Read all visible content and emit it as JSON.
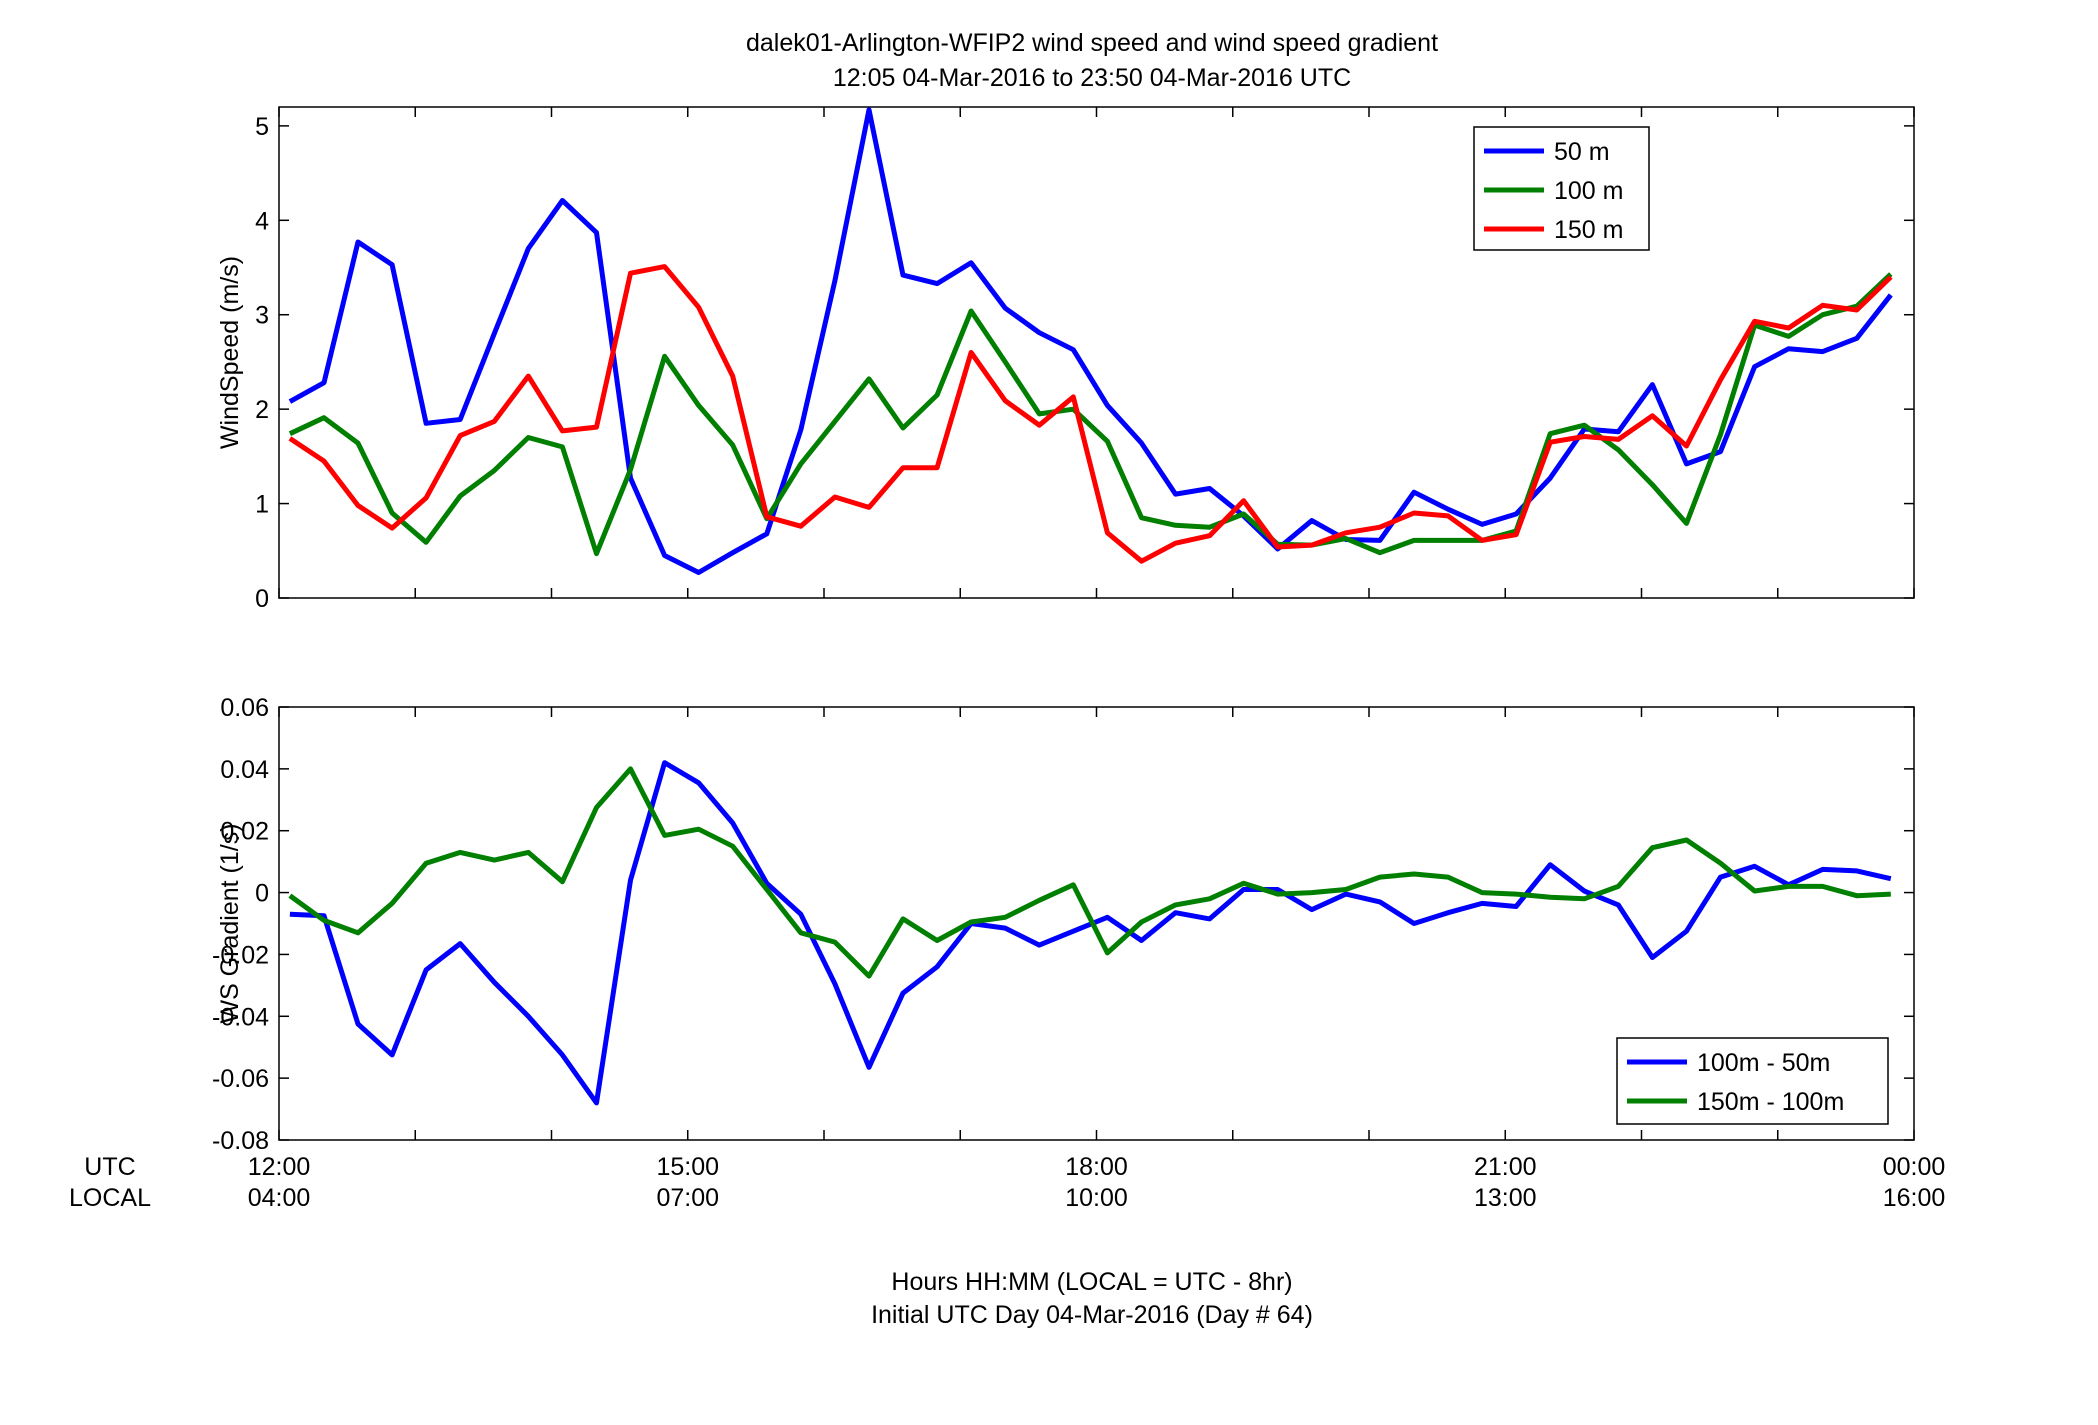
{
  "figure": {
    "title_line1": "dalek01-Arlington-WFIP2  wind speed and wind speed gradient",
    "title_line2": "12:05 04-Mar-2016 to 23:50 04-Mar-2016  UTC",
    "row_label_utc": "UTC",
    "row_label_local": "LOCAL",
    "xlabel_line1": "Hours HH:MM  (LOCAL = UTC - 8hr)",
    "xlabel_line2": "Initial UTC Day 04-Mar-2016 (Day # 64)",
    "utc_ticks": [
      "12:00",
      "15:00",
      "18:00",
      "21:00",
      "00:00"
    ],
    "local_ticks": [
      "04:00",
      "07:00",
      "10:00",
      "13:00",
      "16:00"
    ]
  },
  "chart_data": [
    {
      "type": "line",
      "ylabel": "WindSpeed (m/s)",
      "xlim": [
        12.0,
        24.0
      ],
      "ylim": [
        0,
        5.2
      ],
      "yticks": [
        0,
        1,
        2,
        3,
        4,
        5
      ],
      "ytick_labels": [
        "0",
        "1",
        "2",
        "3",
        "4",
        "5"
      ],
      "legend_position": "top-right",
      "x": [
        12.08,
        12.33,
        12.58,
        12.83,
        13.08,
        13.33,
        13.58,
        13.83,
        14.08,
        14.33,
        14.58,
        14.83,
        15.08,
        15.33,
        15.58,
        15.83,
        16.08,
        16.33,
        16.58,
        16.83,
        17.08,
        17.33,
        17.58,
        17.83,
        18.08,
        18.33,
        18.58,
        18.83,
        19.08,
        19.33,
        19.58,
        19.83,
        20.08,
        20.33,
        20.58,
        20.83,
        21.08,
        21.33,
        21.58,
        21.83,
        22.08,
        22.33,
        22.58,
        22.83,
        23.08,
        23.33,
        23.58,
        23.83
      ],
      "series": [
        {
          "name": "50 m",
          "color": "#0000ff",
          "values": [
            2.08,
            2.28,
            3.77,
            3.53,
            1.85,
            1.89,
            2.8,
            3.7,
            4.21,
            3.87,
            1.27,
            0.45,
            0.27,
            0.48,
            0.68,
            1.78,
            3.36,
            5.17,
            3.42,
            3.33,
            3.55,
            3.07,
            2.81,
            2.63,
            2.04,
            1.64,
            1.1,
            1.16,
            0.87,
            0.52,
            0.82,
            0.62,
            0.61,
            1.12,
            0.94,
            0.78,
            0.89,
            1.27,
            1.79,
            1.76,
            2.26,
            1.42,
            1.55,
            2.45,
            2.64,
            2.61,
            2.75,
            3.21
          ]
        },
        {
          "name": "100 m",
          "color": "#007f00",
          "values": [
            1.74,
            1.91,
            1.64,
            0.9,
            0.59,
            1.08,
            1.35,
            1.7,
            1.6,
            0.47,
            1.36,
            2.56,
            2.04,
            1.62,
            0.84,
            1.42,
            1.87,
            2.32,
            1.8,
            2.15,
            3.04,
            2.5,
            1.95,
            2.0,
            1.66,
            0.85,
            0.77,
            0.75,
            0.89,
            0.57,
            0.56,
            0.63,
            0.48,
            0.61,
            0.61,
            0.61,
            0.71,
            1.74,
            1.83,
            1.57,
            1.2,
            0.79,
            1.73,
            2.89,
            2.77,
            3.0,
            3.09,
            3.43
          ]
        },
        {
          "name": "150 m",
          "color": "#ff0000",
          "values": [
            1.69,
            1.45,
            0.98,
            0.74,
            1.06,
            1.72,
            1.87,
            2.35,
            1.77,
            1.81,
            3.44,
            3.51,
            3.08,
            2.35,
            0.86,
            0.76,
            1.07,
            0.96,
            1.38,
            1.38,
            2.6,
            2.09,
            1.83,
            2.13,
            0.69,
            0.39,
            0.58,
            0.66,
            1.03,
            0.54,
            0.56,
            0.69,
            0.75,
            0.9,
            0.87,
            0.61,
            0.67,
            1.65,
            1.71,
            1.68,
            1.93,
            1.61,
            2.31,
            2.93,
            2.86,
            3.1,
            3.05,
            3.4
          ]
        }
      ]
    },
    {
      "type": "line",
      "ylabel": "WS Gradient (1/s)",
      "xlim": [
        12.0,
        24.0
      ],
      "ylim": [
        -0.08,
        0.06
      ],
      "yticks": [
        -0.08,
        -0.06,
        -0.04,
        -0.02,
        0,
        0.02,
        0.04,
        0.06
      ],
      "ytick_labels": [
        "-0.08",
        "-0.06",
        "-0.04",
        "-0.02",
        "0",
        "0.02",
        "0.04",
        "0.06"
      ],
      "legend_position": "bottom-right",
      "x": [
        12.08,
        12.33,
        12.58,
        12.83,
        13.08,
        13.33,
        13.58,
        13.83,
        14.08,
        14.33,
        14.58,
        14.83,
        15.08,
        15.33,
        15.58,
        15.83,
        16.08,
        16.33,
        16.58,
        16.83,
        17.08,
        17.33,
        17.58,
        17.83,
        18.08,
        18.33,
        18.58,
        18.83,
        19.08,
        19.33,
        19.58,
        19.83,
        20.08,
        20.33,
        20.58,
        20.83,
        21.08,
        21.33,
        21.58,
        21.83,
        22.08,
        22.33,
        22.58,
        22.83,
        23.08,
        23.33,
        23.58,
        23.83
      ],
      "series": [
        {
          "name": "100m - 50m",
          "color": "#0000ff",
          "values": [
            -0.007,
            -0.0075,
            -0.0425,
            -0.0525,
            -0.025,
            -0.0165,
            -0.029,
            -0.04,
            -0.0525,
            -0.068,
            0.004,
            0.042,
            0.0355,
            0.0225,
            0.003,
            -0.007,
            -0.0295,
            -0.0565,
            -0.0325,
            -0.024,
            -0.01,
            -0.0115,
            -0.017,
            -0.0125,
            -0.008,
            -0.0155,
            -0.0065,
            -0.0085,
            0.001,
            0.001,
            -0.0055,
            -0.0005,
            -0.003,
            -0.01,
            -0.0065,
            -0.0035,
            -0.0045,
            0.009,
            0.0005,
            -0.004,
            -0.021,
            -0.0125,
            0.005,
            0.0085,
            0.0025,
            0.0075,
            0.007,
            0.0045
          ]
        },
        {
          "name": "150m - 100m",
          "color": "#007f00",
          "values": [
            -0.001,
            -0.009,
            -0.013,
            -0.0035,
            0.0095,
            0.013,
            0.0105,
            0.013,
            0.0035,
            0.0275,
            0.04,
            0.0185,
            0.0205,
            0.015,
            0.001,
            -0.013,
            -0.016,
            -0.027,
            -0.0085,
            -0.0155,
            -0.0095,
            -0.008,
            -0.0025,
            0.0025,
            -0.0195,
            -0.0095,
            -0.004,
            -0.002,
            0.003,
            -0.0005,
            0.0,
            0.001,
            0.005,
            0.006,
            0.005,
            0.0,
            -0.0005,
            -0.0015,
            -0.002,
            0.002,
            0.0145,
            0.017,
            0.0095,
            0.0005,
            0.002,
            0.002,
            -0.001,
            -0.0005
          ]
        }
      ]
    }
  ]
}
